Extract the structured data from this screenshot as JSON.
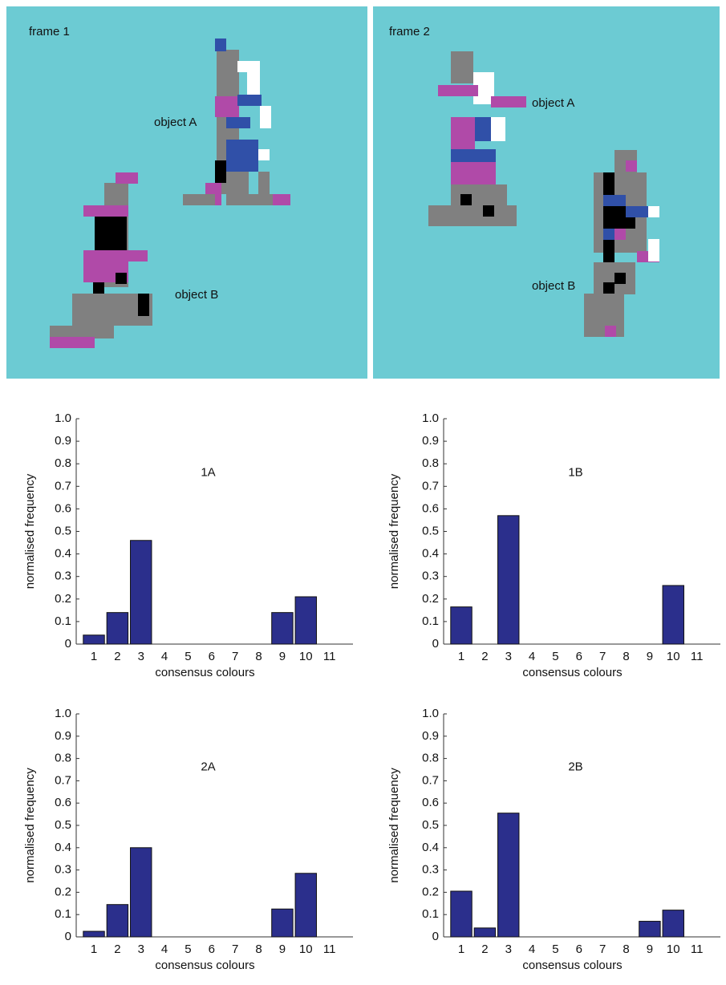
{
  "frames": [
    {
      "label": "frame 1",
      "objects": [
        "object A",
        "object B"
      ]
    },
    {
      "label": "frame 2",
      "objects": [
        "object A",
        "object B"
      ]
    }
  ],
  "chart_data": [
    {
      "type": "bar",
      "title": "1A",
      "x_label": "consensus colours",
      "y_label": "normalised frequency",
      "categories": [
        "1",
        "2",
        "3",
        "4",
        "5",
        "6",
        "7",
        "8",
        "9",
        "10",
        "11"
      ],
      "values": [
        0.04,
        0.14,
        0.46,
        0,
        0,
        0,
        0,
        0,
        0.14,
        0.21,
        0
      ],
      "color": "#2b2f8c",
      "ylim": [
        0,
        1
      ],
      "yticks": [
        0,
        0.1,
        0.2,
        0.3,
        0.4,
        0.5,
        0.6,
        0.7,
        0.8,
        0.9,
        {
          "value": 1,
          "label": "1.0"
        }
      ]
    },
    {
      "type": "bar",
      "title": "1B",
      "x_label": "consensus colours",
      "y_label": "normalised frequency",
      "categories": [
        "1",
        "2",
        "3",
        "4",
        "5",
        "6",
        "7",
        "8",
        "9",
        "10",
        "11"
      ],
      "values": [
        0.165,
        0,
        0.57,
        0,
        0,
        0,
        0,
        0,
        0,
        0.26,
        0
      ],
      "color": "#2b2f8c",
      "ylim": [
        0,
        1
      ],
      "yticks": [
        0,
        0.1,
        0.2,
        0.3,
        0.4,
        0.5,
        0.6,
        0.7,
        0.8,
        0.9,
        {
          "value": 1,
          "label": "1.0"
        }
      ]
    },
    {
      "type": "bar",
      "title": "2A",
      "x_label": "consensus colours",
      "y_label": "normalised frequency",
      "categories": [
        "1",
        "2",
        "3",
        "4",
        "5",
        "6",
        "7",
        "8",
        "9",
        "10",
        "11"
      ],
      "values": [
        0.025,
        0.145,
        0.4,
        0,
        0,
        0,
        0,
        0,
        0.125,
        0.285,
        0
      ],
      "color": "#2b2f8c",
      "ylim": [
        0,
        1
      ],
      "yticks": [
        0,
        0.1,
        0.2,
        0.3,
        0.4,
        0.5,
        0.6,
        0.7,
        0.8,
        0.9,
        {
          "value": 1,
          "label": "1.0"
        }
      ]
    },
    {
      "type": "bar",
      "title": "2B",
      "x_label": "consensus colours",
      "y_label": "normalised frequency",
      "categories": [
        "1",
        "2",
        "3",
        "4",
        "5",
        "6",
        "7",
        "8",
        "9",
        "10",
        "11"
      ],
      "values": [
        0.205,
        0.04,
        0.555,
        0,
        0,
        0,
        0,
        0,
        0.07,
        0.12,
        0
      ],
      "color": "#2b2f8c",
      "ylim": [
        0,
        1
      ],
      "yticks": [
        0,
        0.1,
        0.2,
        0.3,
        0.4,
        0.5,
        0.6,
        0.7,
        0.8,
        0.9,
        {
          "value": 1,
          "label": "1.0"
        }
      ]
    }
  ]
}
